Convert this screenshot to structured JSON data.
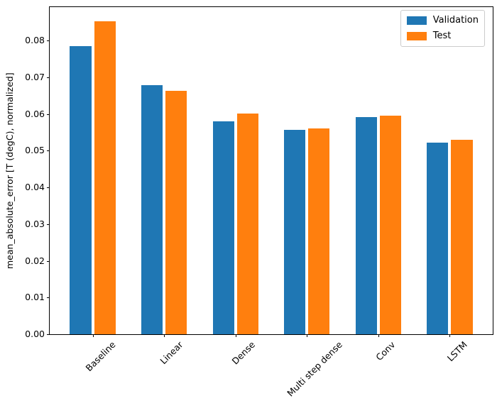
{
  "figure": {
    "background": "#ffffff",
    "axes_edge_color": "#000000"
  },
  "chart_data": {
    "type": "bar",
    "title": "",
    "xlabel": "",
    "ylabel": "mean_absolute_error [T (degC), normalized]",
    "categories": [
      "Baseline",
      "Linear",
      "Dense",
      "Multi step dense",
      "Conv",
      "LSTM"
    ],
    "series": [
      {
        "name": "Validation",
        "color": "#1f77b4",
        "values": [
          0.0785,
          0.0678,
          0.058,
          0.0556,
          0.0592,
          0.0521
        ]
      },
      {
        "name": "Test",
        "color": "#ff7f0e",
        "values": [
          0.0852,
          0.0663,
          0.0601,
          0.056,
          0.0595,
          0.053
        ]
      }
    ],
    "ylim": [
      0,
      0.0891
    ],
    "xlim": [
      -0.602,
      5.602
    ],
    "yticks": [
      0,
      0.01,
      0.02,
      0.03,
      0.04,
      0.05,
      0.06,
      0.07,
      0.08
    ],
    "ytick_labels": [
      "0.00",
      "0.01",
      "0.02",
      "0.03",
      "0.04",
      "0.05",
      "0.06",
      "0.07",
      "0.08"
    ],
    "bar_width": 0.3,
    "bar_offsets": [
      -0.17,
      0.17
    ],
    "grid": false,
    "xtick_rotation_deg": 45,
    "legend": {
      "position": "upper right",
      "edge_color": "#cccccc",
      "entries": [
        "Validation",
        "Test"
      ]
    }
  }
}
